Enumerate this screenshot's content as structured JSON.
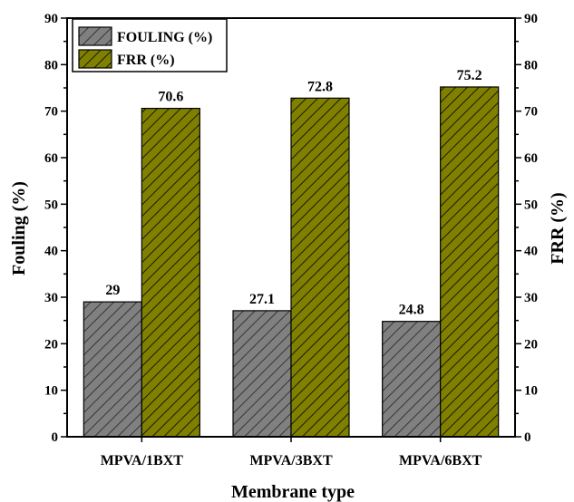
{
  "chart_data": {
    "type": "bar",
    "title": "",
    "xlabel": "Membrane type",
    "ylabel": "Fouling (%)",
    "ylabel_right": "FRR (%)",
    "categories": [
      "MPVA/1BXT",
      "MPVA/3BXT",
      "MPVA/6BXT"
    ],
    "series": [
      {
        "name": "FOULING (%)",
        "values": [
          29,
          27.1,
          24.8
        ],
        "data_labels": [
          "29",
          "27.1",
          "24.8"
        ],
        "color": "#808080",
        "hatch": "diagonal"
      },
      {
        "name": "FRR (%)",
        "values": [
          70.6,
          72.8,
          75.2
        ],
        "data_labels": [
          "70.6",
          "72.8",
          "75.2"
        ],
        "color": "#808000",
        "hatch": "diagonal"
      }
    ],
    "ylim": [
      0,
      90
    ],
    "ylim_right": [
      0,
      90
    ],
    "yticks": [
      "0",
      "10",
      "20",
      "30",
      "40",
      "50",
      "60",
      "70",
      "80",
      "90"
    ],
    "grid": false,
    "legend_position": "top-left"
  }
}
